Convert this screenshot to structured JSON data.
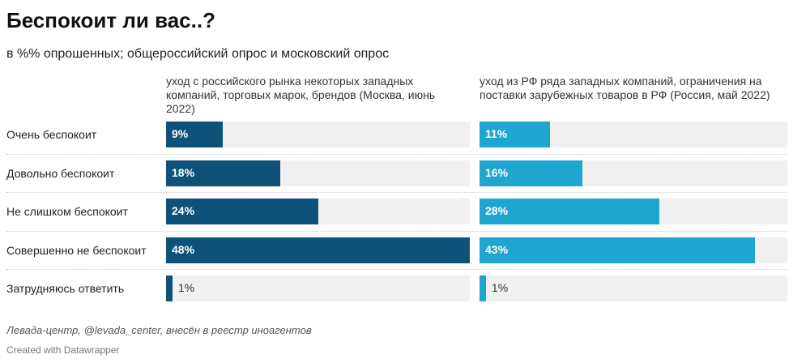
{
  "chart_data": {
    "type": "bar",
    "title": "Беспокоит ли вас..?",
    "subtitle": "в %% опрошенных; общероссийский опрос и московский опрос",
    "categories": [
      "Очень беспокоит",
      "Довольно беспокоит",
      "Не слишком беспокоит",
      "Совершенно не беспокоит",
      "Затрудняюсь ответить"
    ],
    "series": [
      {
        "name": "уход с российского рынка некоторых западных компаний, торговых марок, брендов (Москва, июнь 2022)",
        "values": [
          9,
          18,
          24,
          48,
          1
        ],
        "labels": [
          "9%",
          "18%",
          "24%",
          "48%",
          "1%"
        ],
        "color": "#0e5279"
      },
      {
        "name": "уход из РФ ряда западных компаний, ограничения на поставки зарубежных товаров в РФ (Россия, май 2022)",
        "values": [
          11,
          16,
          28,
          43,
          1
        ],
        "labels": [
          "11%",
          "16%",
          "28%",
          "43%",
          "1%"
        ],
        "color": "#1ea5d0"
      }
    ],
    "xlim": [
      0,
      48
    ]
  },
  "footer": {
    "source": "Левада-центр, @levada_center, внесён в реестр иноагентов",
    "credit": "Created with Datawrapper"
  }
}
